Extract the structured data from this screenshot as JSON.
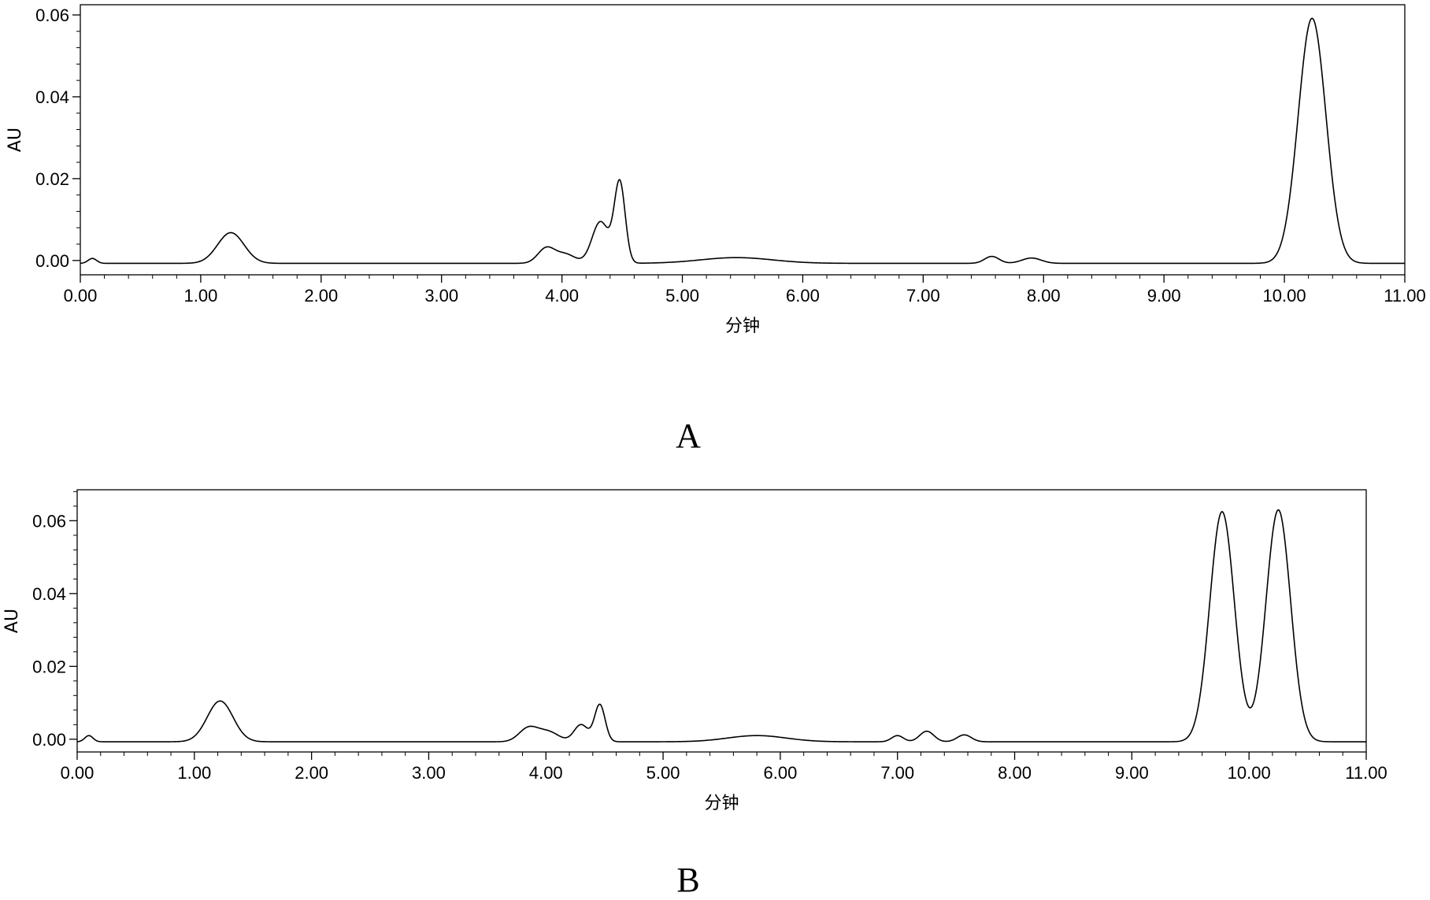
{
  "chart_data": [
    {
      "type": "line",
      "panel_label": "A",
      "xlabel": "分钟",
      "ylabel": "AU",
      "xlim": [
        0,
        11
      ],
      "ylim": [
        -0.0035,
        0.0625
      ],
      "x_ticks": [
        "0.00",
        "1.00",
        "2.00",
        "3.00",
        "4.00",
        "5.00",
        "6.00",
        "7.00",
        "8.00",
        "9.00",
        "10.00",
        "11.00"
      ],
      "y_ticks": [
        "0.00",
        "0.02",
        "0.04",
        "0.06"
      ],
      "grid": false,
      "baseline": -0.0007,
      "peaks": [
        {
          "x": 0.1,
          "y": 0.0005,
          "width": 0.035
        },
        {
          "x": 1.25,
          "y": 0.0068,
          "width": 0.11
        },
        {
          "x": 3.87,
          "y": 0.003,
          "width": 0.07
        },
        {
          "x": 4.03,
          "y": 0.0015,
          "width": 0.08
        },
        {
          "x": 4.32,
          "y": 0.0095,
          "width": 0.07
        },
        {
          "x": 4.48,
          "y": 0.019,
          "width": 0.045
        },
        {
          "x": 5.45,
          "y": 0.0007,
          "width": 0.3
        },
        {
          "x": 7.57,
          "y": 0.001,
          "width": 0.06
        },
        {
          "x": 7.9,
          "y": 0.0006,
          "width": 0.08
        },
        {
          "x": 10.23,
          "y": 0.0592,
          "width": 0.115
        }
      ]
    },
    {
      "type": "line",
      "panel_label": "B",
      "xlabel": "分钟",
      "ylabel": "AU",
      "xlim": [
        0,
        11
      ],
      "ylim": [
        -0.0035,
        0.0685
      ],
      "x_ticks": [
        "0.00",
        "1.00",
        "2.00",
        "3.00",
        "4.00",
        "5.00",
        "6.00",
        "7.00",
        "8.00",
        "9.00",
        "10.00",
        "11.00"
      ],
      "y_ticks": [
        "0.00",
        "0.02",
        "0.04",
        "0.06"
      ],
      "grid": false,
      "baseline": -0.0007,
      "peaks": [
        {
          "x": 0.1,
          "y": 0.001,
          "width": 0.035
        },
        {
          "x": 1.22,
          "y": 0.0105,
          "width": 0.11
        },
        {
          "x": 3.85,
          "y": 0.003,
          "width": 0.08
        },
        {
          "x": 4.02,
          "y": 0.002,
          "width": 0.09
        },
        {
          "x": 4.3,
          "y": 0.004,
          "width": 0.06
        },
        {
          "x": 4.46,
          "y": 0.0095,
          "width": 0.045
        },
        {
          "x": 5.8,
          "y": 0.001,
          "width": 0.25
        },
        {
          "x": 7.0,
          "y": 0.001,
          "width": 0.05
        },
        {
          "x": 7.25,
          "y": 0.0022,
          "width": 0.06
        },
        {
          "x": 7.57,
          "y": 0.0012,
          "width": 0.06
        },
        {
          "x": 9.77,
          "y": 0.0625,
          "width": 0.105
        },
        {
          "x": 10.25,
          "y": 0.063,
          "width": 0.105
        }
      ]
    }
  ]
}
